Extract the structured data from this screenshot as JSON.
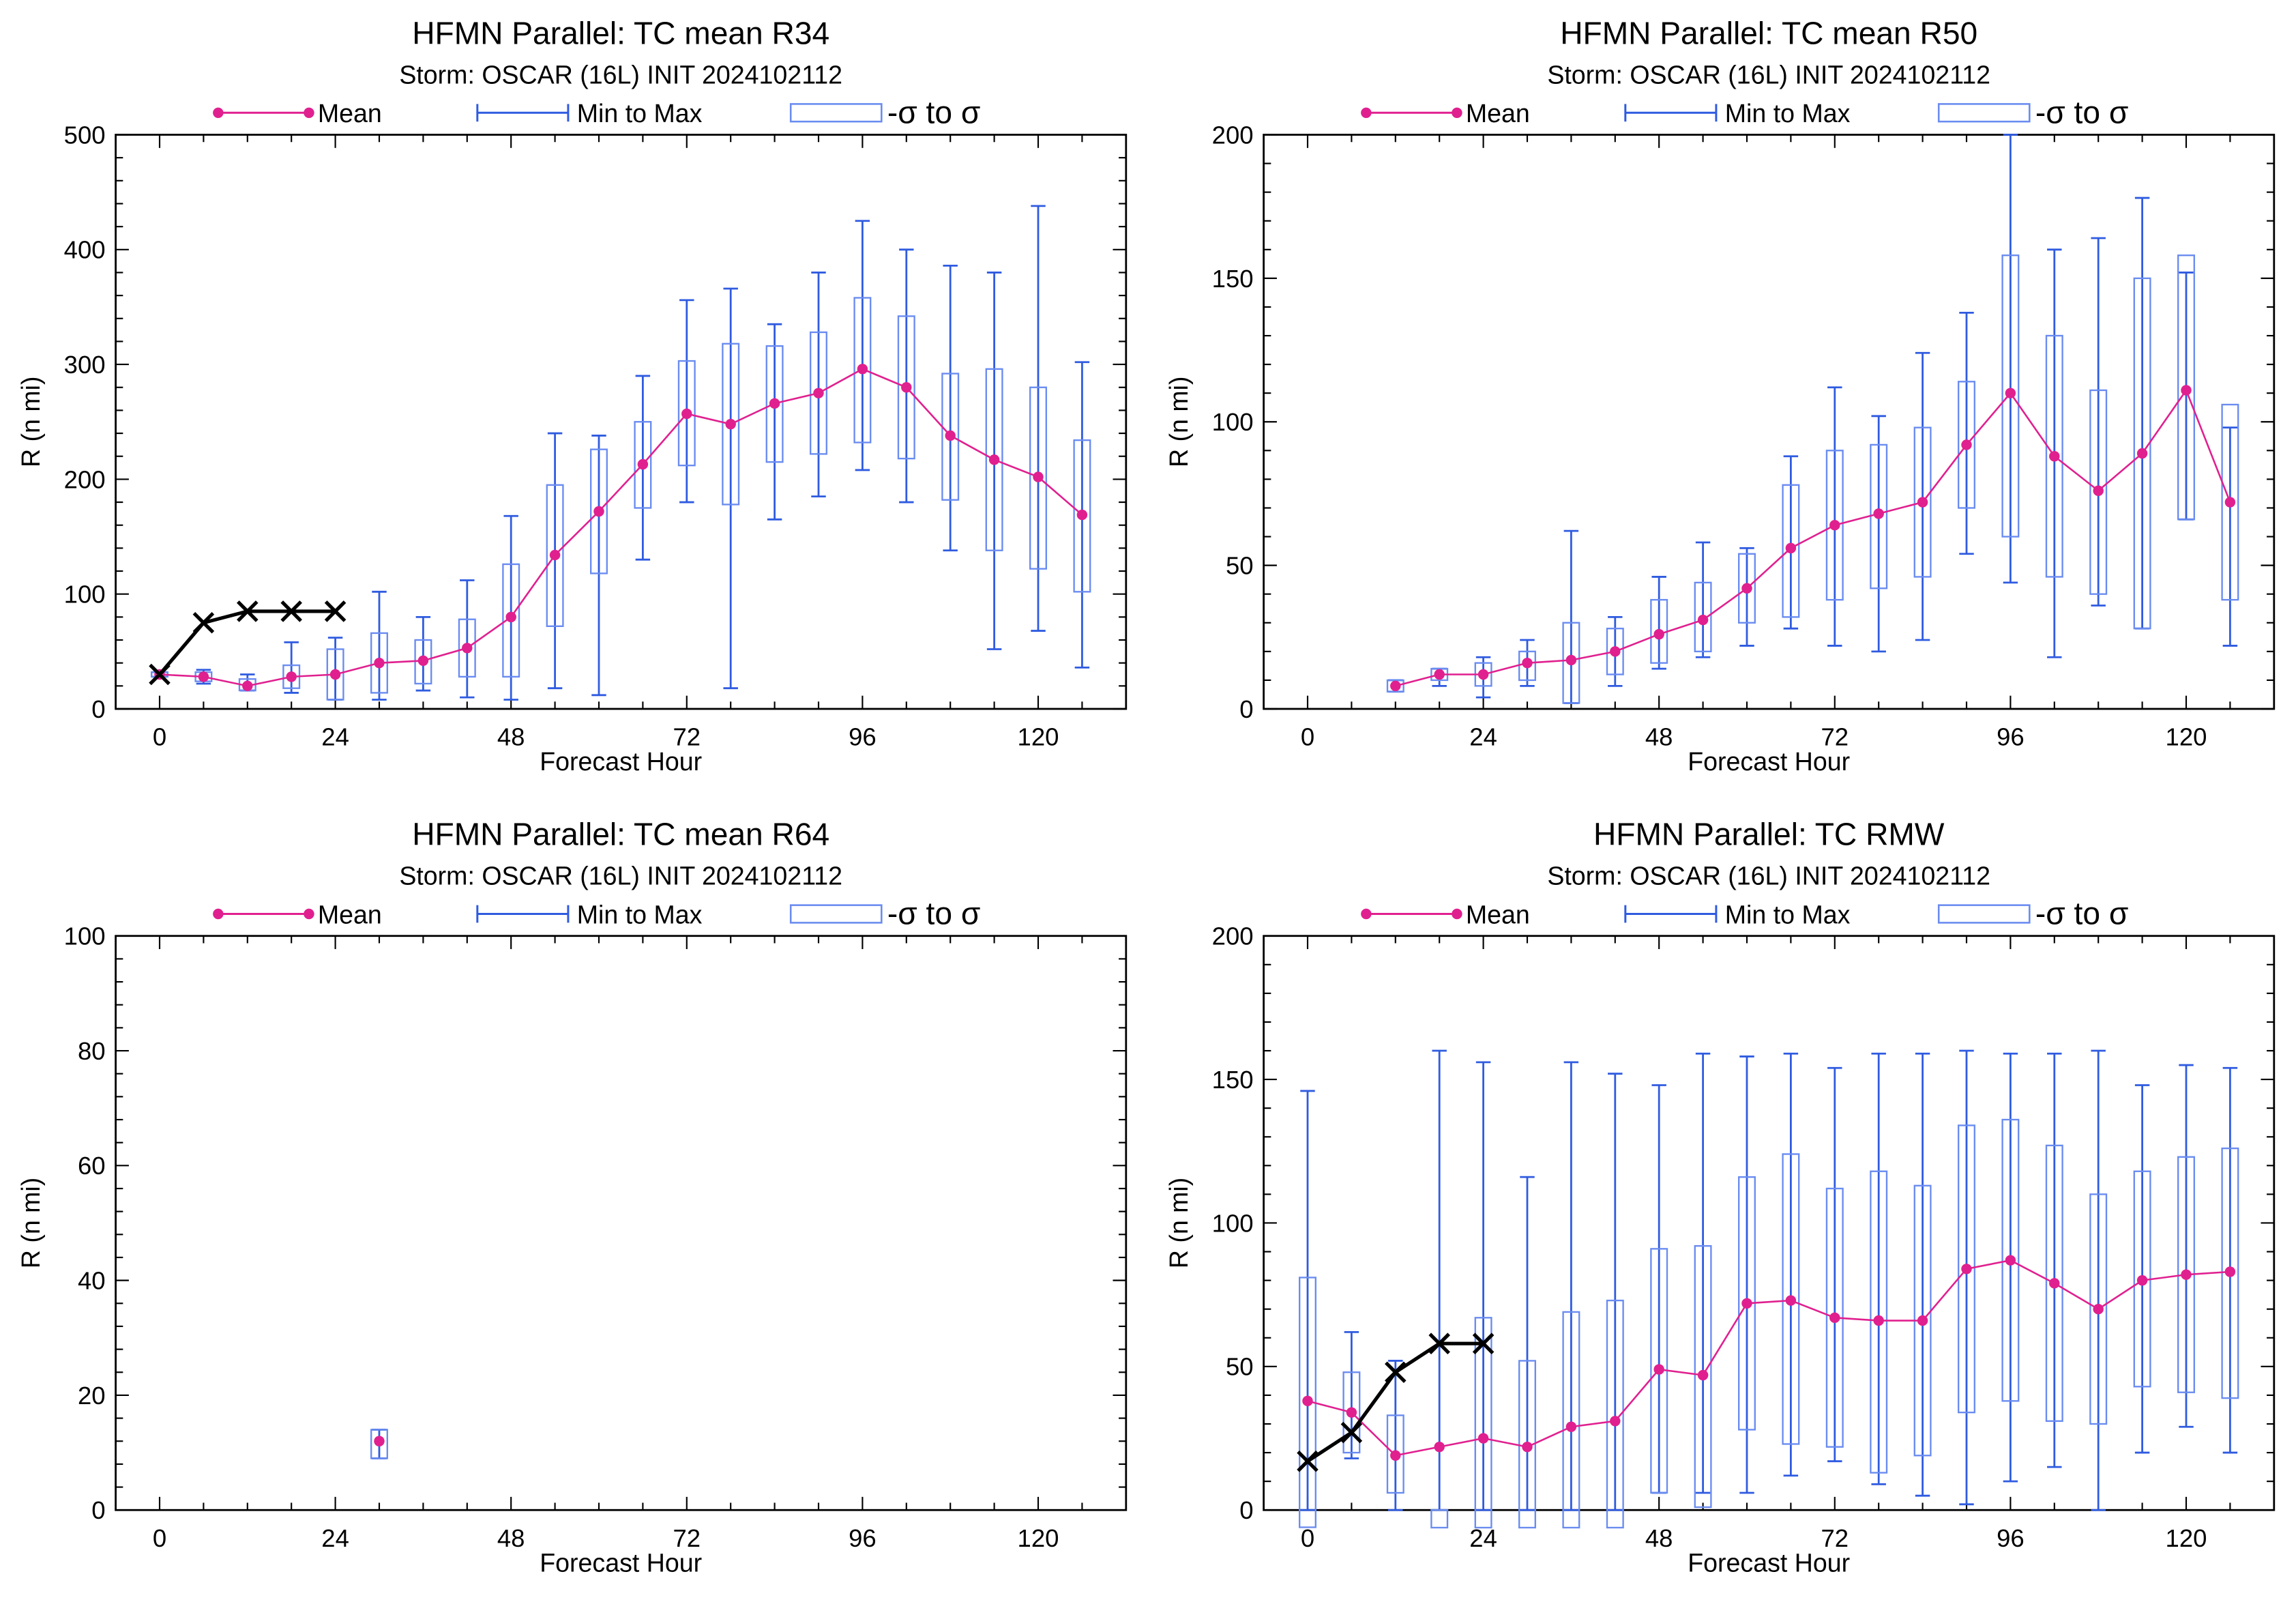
{
  "chart_data": [
    {
      "type": "box",
      "title": "HFMN Parallel: TC mean R34",
      "subtitle": "Storm: OSCAR (16L) INIT 2024102112",
      "xlabel": "Forecast Hour",
      "ylabel": "R (n mi)",
      "xlim": [
        -6,
        132
      ],
      "ylim": [
        0,
        500
      ],
      "xticks": [
        0,
        24,
        48,
        72,
        96,
        120
      ],
      "yticks": [
        0,
        100,
        200,
        300,
        400,
        500
      ],
      "legend": [
        "Mean",
        "Min to Max",
        "-σ to σ"
      ],
      "mean": {
        "x": [
          0,
          6,
          12,
          18,
          24,
          30,
          36,
          42,
          48,
          54,
          60,
          66,
          72,
          78,
          84,
          90,
          96,
          102,
          108,
          114,
          120,
          126
        ],
        "y": [
          30,
          28,
          20,
          28,
          30,
          40,
          42,
          53,
          80,
          134,
          172,
          213,
          257,
          248,
          266,
          275,
          296,
          280,
          238,
          217,
          202,
          169
        ]
      },
      "boxes": [
        {
          "x": 0,
          "min": 28,
          "max": 32,
          "lo": 28,
          "hi": 32
        },
        {
          "x": 6,
          "min": 22,
          "max": 34,
          "lo": 24,
          "hi": 32
        },
        {
          "x": 12,
          "min": 16,
          "max": 30,
          "lo": 16,
          "hi": 26
        },
        {
          "x": 18,
          "min": 14,
          "max": 58,
          "lo": 18,
          "hi": 38
        },
        {
          "x": 24,
          "min": 8,
          "max": 62,
          "lo": 8,
          "hi": 52
        },
        {
          "x": 30,
          "min": 8,
          "max": 102,
          "lo": 14,
          "hi": 66
        },
        {
          "x": 36,
          "min": 16,
          "max": 80,
          "lo": 22,
          "hi": 60
        },
        {
          "x": 42,
          "min": 10,
          "max": 112,
          "lo": 28,
          "hi": 78
        },
        {
          "x": 48,
          "min": 8,
          "max": 168,
          "lo": 28,
          "hi": 126
        },
        {
          "x": 54,
          "min": 18,
          "max": 240,
          "lo": 72,
          "hi": 195
        },
        {
          "x": 60,
          "min": 12,
          "max": 238,
          "lo": 118,
          "hi": 226
        },
        {
          "x": 66,
          "min": 130,
          "max": 290,
          "lo": 175,
          "hi": 250
        },
        {
          "x": 72,
          "min": 180,
          "max": 356,
          "lo": 212,
          "hi": 303
        },
        {
          "x": 78,
          "min": 18,
          "max": 366,
          "lo": 178,
          "hi": 318
        },
        {
          "x": 84,
          "min": 165,
          "max": 335,
          "lo": 215,
          "hi": 316
        },
        {
          "x": 90,
          "min": 185,
          "max": 380,
          "lo": 222,
          "hi": 328
        },
        {
          "x": 96,
          "min": 208,
          "max": 425,
          "lo": 232,
          "hi": 358
        },
        {
          "x": 102,
          "min": 180,
          "max": 400,
          "lo": 218,
          "hi": 342
        },
        {
          "x": 108,
          "min": 138,
          "max": 386,
          "lo": 182,
          "hi": 292
        },
        {
          "x": 114,
          "min": 52,
          "max": 380,
          "lo": 138,
          "hi": 296
        },
        {
          "x": 120,
          "min": 68,
          "max": 438,
          "lo": 122,
          "hi": 280
        },
        {
          "x": 126,
          "min": 36,
          "max": 302,
          "lo": 102,
          "hi": 234
        }
      ],
      "observed": {
        "x": [
          0,
          6,
          12,
          18,
          24
        ],
        "y": [
          30,
          75,
          85,
          85,
          85
        ]
      }
    },
    {
      "type": "box",
      "title": "HFMN Parallel: TC mean R50",
      "subtitle": "Storm: OSCAR (16L) INIT 2024102112",
      "xlabel": "Forecast Hour",
      "ylabel": "R (n mi)",
      "xlim": [
        -6,
        132
      ],
      "ylim": [
        0,
        200
      ],
      "xticks": [
        0,
        24,
        48,
        72,
        96,
        120
      ],
      "yticks": [
        0,
        50,
        100,
        150,
        200
      ],
      "legend": [
        "Mean",
        "Min to Max",
        "-σ to σ"
      ],
      "mean": {
        "x": [
          12,
          18,
          24,
          30,
          36,
          42,
          48,
          54,
          60,
          66,
          72,
          78,
          84,
          90,
          96,
          102,
          108,
          114,
          120,
          126
        ],
        "y": [
          8,
          12,
          12,
          16,
          17,
          20,
          26,
          31,
          42,
          56,
          64,
          68,
          72,
          92,
          110,
          88,
          76,
          89,
          111,
          72
        ]
      },
      "boxes": [
        {
          "x": 12,
          "min": 6,
          "max": 10,
          "lo": 6,
          "hi": 10
        },
        {
          "x": 18,
          "min": 8,
          "max": 14,
          "lo": 10,
          "hi": 14
        },
        {
          "x": 24,
          "min": 4,
          "max": 18,
          "lo": 8,
          "hi": 16
        },
        {
          "x": 30,
          "min": 8,
          "max": 24,
          "lo": 10,
          "hi": 20
        },
        {
          "x": 36,
          "min": 2,
          "max": 62,
          "lo": 2,
          "hi": 30
        },
        {
          "x": 42,
          "min": 8,
          "max": 32,
          "lo": 12,
          "hi": 28
        },
        {
          "x": 48,
          "min": 14,
          "max": 46,
          "lo": 16,
          "hi": 38
        },
        {
          "x": 54,
          "min": 18,
          "max": 58,
          "lo": 20,
          "hi": 44
        },
        {
          "x": 60,
          "min": 22,
          "max": 56,
          "lo": 30,
          "hi": 54
        },
        {
          "x": 66,
          "min": 28,
          "max": 88,
          "lo": 32,
          "hi": 78
        },
        {
          "x": 72,
          "min": 22,
          "max": 112,
          "lo": 38,
          "hi": 90
        },
        {
          "x": 78,
          "min": 20,
          "max": 102,
          "lo": 42,
          "hi": 92
        },
        {
          "x": 84,
          "min": 24,
          "max": 124,
          "lo": 46,
          "hi": 98
        },
        {
          "x": 90,
          "min": 54,
          "max": 138,
          "lo": 70,
          "hi": 114
        },
        {
          "x": 96,
          "min": 44,
          "max": 200,
          "lo": 60,
          "hi": 158
        },
        {
          "x": 102,
          "min": 18,
          "max": 160,
          "lo": 46,
          "hi": 130
        },
        {
          "x": 108,
          "min": 36,
          "max": 164,
          "lo": 40,
          "hi": 111
        },
        {
          "x": 114,
          "min": 28,
          "max": 178,
          "lo": 28,
          "hi": 150
        },
        {
          "x": 120,
          "min": 66,
          "max": 152,
          "lo": 66,
          "hi": 158
        },
        {
          "x": 126,
          "min": 22,
          "max": 98,
          "lo": 38,
          "hi": 106
        }
      ]
    },
    {
      "type": "box",
      "title": "HFMN Parallel: TC mean R64",
      "subtitle": "Storm: OSCAR (16L) INIT 2024102112",
      "xlabel": "Forecast Hour",
      "ylabel": "R (n mi)",
      "xlim": [
        -6,
        132
      ],
      "ylim": [
        0,
        100
      ],
      "xticks": [
        0,
        24,
        48,
        72,
        96,
        120
      ],
      "yticks": [
        0,
        20,
        40,
        60,
        80,
        100
      ],
      "legend": [
        "Mean",
        "Min to Max",
        "-σ to σ"
      ],
      "mean": {
        "x": [
          30
        ],
        "y": [
          12
        ]
      },
      "boxes": [
        {
          "x": 30,
          "min": 9,
          "max": 14,
          "lo": 9,
          "hi": 14
        }
      ]
    },
    {
      "type": "box",
      "title": "HFMN Parallel: TC RMW",
      "subtitle": "Storm: OSCAR (16L) INIT 2024102112",
      "xlabel": "Forecast Hour",
      "ylabel": "R (n mi)",
      "xlim": [
        -6,
        132
      ],
      "ylim": [
        0,
        200
      ],
      "xticks": [
        0,
        24,
        48,
        72,
        96,
        120
      ],
      "yticks": [
        0,
        50,
        100,
        150,
        200
      ],
      "legend": [
        "Mean",
        "Min to Max",
        "-σ to σ"
      ],
      "mean": {
        "x": [
          0,
          6,
          12,
          18,
          24,
          30,
          36,
          42,
          48,
          54,
          60,
          66,
          72,
          78,
          84,
          90,
          96,
          102,
          108,
          114,
          120,
          126
        ],
        "y": [
          38,
          34,
          19,
          22,
          25,
          22,
          29,
          31,
          49,
          47,
          72,
          73,
          67,
          66,
          66,
          84,
          87,
          79,
          70,
          80,
          82,
          83
        ]
      },
      "boxes": [
        {
          "x": 0,
          "min": 0,
          "max": 146,
          "lo": -6,
          "hi": 81
        },
        {
          "x": 6,
          "min": 18,
          "max": 62,
          "lo": 20,
          "hi": 48
        },
        {
          "x": 12,
          "min": 0,
          "max": 52,
          "lo": 6,
          "hi": 33
        },
        {
          "x": 18,
          "min": 0,
          "max": 160,
          "lo": -12,
          "hi": 0
        },
        {
          "x": 24,
          "min": 0,
          "max": 156,
          "lo": -16,
          "hi": 67
        },
        {
          "x": 30,
          "min": 0,
          "max": 116,
          "lo": -7,
          "hi": 52
        },
        {
          "x": 36,
          "min": 0,
          "max": 156,
          "lo": -11,
          "hi": 69
        },
        {
          "x": 42,
          "min": 0,
          "max": 152,
          "lo": -10,
          "hi": 73
        },
        {
          "x": 48,
          "min": 6,
          "max": 148,
          "lo": 6,
          "hi": 91
        },
        {
          "x": 54,
          "min": 6,
          "max": 159,
          "lo": 1,
          "hi": 92
        },
        {
          "x": 60,
          "min": 6,
          "max": 158,
          "lo": 28,
          "hi": 116
        },
        {
          "x": 66,
          "min": 12,
          "max": 159,
          "lo": 23,
          "hi": 124
        },
        {
          "x": 72,
          "min": 17,
          "max": 154,
          "lo": 22,
          "hi": 112
        },
        {
          "x": 78,
          "min": 9,
          "max": 159,
          "lo": 13,
          "hi": 118
        },
        {
          "x": 84,
          "min": 5,
          "max": 159,
          "lo": 19,
          "hi": 113
        },
        {
          "x": 90,
          "min": 2,
          "max": 160,
          "lo": 34,
          "hi": 134
        },
        {
          "x": 96,
          "min": 10,
          "max": 159,
          "lo": 38,
          "hi": 136
        },
        {
          "x": 102,
          "min": 15,
          "max": 159,
          "lo": 31,
          "hi": 127
        },
        {
          "x": 108,
          "min": 0,
          "max": 160,
          "lo": 30,
          "hi": 110
        },
        {
          "x": 114,
          "min": 20,
          "max": 148,
          "lo": 43,
          "hi": 118
        },
        {
          "x": 120,
          "min": 29,
          "max": 155,
          "lo": 41,
          "hi": 123
        },
        {
          "x": 126,
          "min": 20,
          "max": 154,
          "lo": 39,
          "hi": 126
        }
      ],
      "observed": {
        "x": [
          0,
          6,
          12,
          18,
          24
        ],
        "y": [
          17,
          27,
          48,
          58,
          58
        ]
      }
    }
  ],
  "colors": {
    "mean": "#e0208f",
    "minmax": "#2f5be0",
    "sigma": "#6a8cf0",
    "observed": "#000000"
  }
}
